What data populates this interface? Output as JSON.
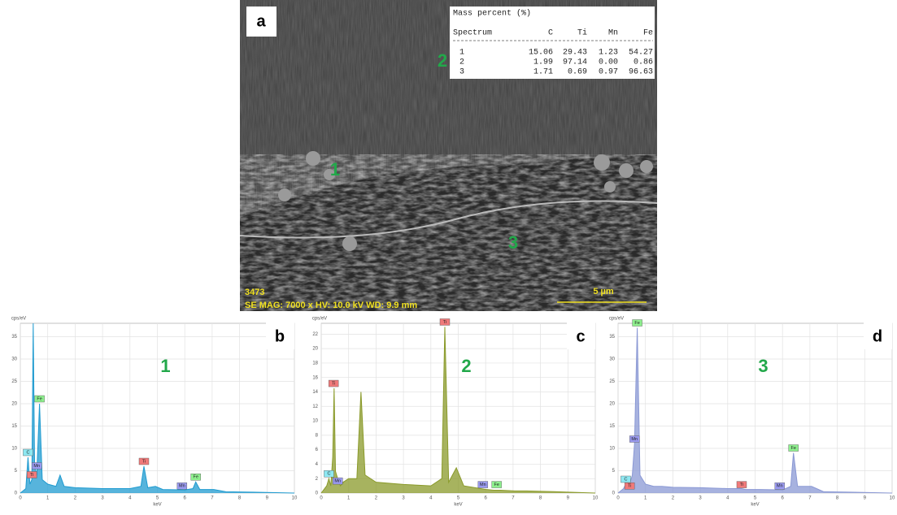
{
  "panel_a": {
    "label": "a",
    "table": {
      "title": "Mass percent (%)",
      "header": [
        "Spectrum",
        "C",
        "Ti",
        "Mn",
        "Fe"
      ],
      "rows": [
        [
          "1",
          "15.06",
          "29.43",
          "1.23",
          "54.27"
        ],
        [
          "2",
          "1.99",
          "97.14",
          "0.00",
          "0.86"
        ],
        [
          "3",
          "1.71",
          "0.69",
          "0.97",
          "96.63"
        ]
      ]
    },
    "markers": [
      "1",
      "2",
      "3"
    ],
    "info": [
      "3473",
      "SE MAG: 7000 x HV: 10.0 kV WD: 9.9 mm"
    ],
    "scale_bar": "5 µm"
  },
  "element_colors": {
    "C": "#8ee8f2",
    "Ti": "#f07a7a",
    "Mn": "#9a9af0",
    "Fe": "#8ef08e"
  },
  "chart_data": [
    {
      "type": "area",
      "panel_label": "b",
      "annotation": "1",
      "y_label": "cps/eV",
      "x_label": "keV",
      "color": "#1f9bd0",
      "grid": true,
      "x": [
        0,
        0.2,
        0.28,
        0.35,
        0.42,
        0.47,
        0.52,
        0.6,
        0.7,
        0.8,
        1.0,
        1.3,
        1.45,
        1.6,
        2.0,
        3.0,
        4.0,
        4.4,
        4.51,
        4.65,
        4.93,
        5.2,
        6.0,
        6.3,
        6.4,
        6.55,
        7.06,
        7.5,
        8.5,
        10
      ],
      "values": [
        0,
        1,
        8,
        2,
        3,
        38,
        6,
        4,
        20,
        3,
        2,
        1.5,
        4,
        1.5,
        1.2,
        1,
        1,
        1.5,
        6,
        1.2,
        1.5,
        0.8,
        0.7,
        1,
        2.5,
        0.8,
        0.8,
        0.3,
        0.2,
        0
      ],
      "xlim": [
        0,
        10
      ],
      "xticks": [
        0,
        1,
        2,
        3,
        4,
        5,
        6,
        7,
        8,
        9,
        10
      ],
      "ylim": [
        0,
        38
      ],
      "yticks": [
        0,
        5,
        10,
        15,
        20,
        25,
        30,
        35
      ],
      "peak_labels": [
        {
          "text": "C",
          "x": 0.28,
          "y": 8
        },
        {
          "text": "Ti",
          "x": 0.42,
          "y": 3
        },
        {
          "text": "Mn",
          "x": 0.6,
          "y": 5
        },
        {
          "text": "Fe",
          "x": 0.7,
          "y": 20
        },
        {
          "text": "Ti",
          "x": 4.51,
          "y": 6
        },
        {
          "text": "Mn",
          "x": 5.9,
          "y": 0.5
        },
        {
          "text": "Fe",
          "x": 6.4,
          "y": 2.5
        }
      ]
    },
    {
      "type": "area",
      "panel_label": "c",
      "annotation": "2",
      "y_label": "cps/eV",
      "x_label": "keV",
      "color": "#8a9a2a",
      "grid": true,
      "x": [
        0,
        0.2,
        0.28,
        0.35,
        0.42,
        0.47,
        0.52,
        0.6,
        0.7,
        0.8,
        1.0,
        1.3,
        1.45,
        1.6,
        2.0,
        3.0,
        4.0,
        4.4,
        4.51,
        4.65,
        4.93,
        5.2,
        6.0,
        6.3,
        6.4,
        6.55,
        7.06,
        7.5,
        8.5,
        10
      ],
      "values": [
        0,
        1,
        2,
        1,
        5,
        14.5,
        3,
        2,
        1,
        1.5,
        2,
        2,
        14,
        2.5,
        1.5,
        1.2,
        1,
        2,
        23,
        1.5,
        3.5,
        1,
        0.5,
        0.4,
        0.4,
        0.4,
        0.3,
        0.3,
        0.2,
        0
      ],
      "xlim": [
        0,
        10
      ],
      "xticks": [
        0,
        1,
        2,
        3,
        4,
        5,
        6,
        7,
        8,
        9,
        10
      ],
      "ylim": [
        0,
        23.5
      ],
      "yticks": [
        0,
        2,
        4,
        6,
        8,
        10,
        12,
        14,
        16,
        18,
        20,
        22
      ],
      "peak_labels": [
        {
          "text": "Ti",
          "x": 0.45,
          "y": 14.5
        },
        {
          "text": "C",
          "x": 0.28,
          "y": 2
        },
        {
          "text": "Mn",
          "x": 0.6,
          "y": 1
        },
        {
          "text": "Ti",
          "x": 4.51,
          "y": 23
        },
        {
          "text": "Mn",
          "x": 5.9,
          "y": 0.5
        },
        {
          "text": "Fe",
          "x": 6.4,
          "y": 0.5
        }
      ]
    },
    {
      "type": "area",
      "panel_label": "d",
      "annotation": "3",
      "y_label": "cps/eV",
      "x_label": "keV",
      "color": "#8a98d4",
      "grid": true,
      "x": [
        0,
        0.2,
        0.28,
        0.35,
        0.42,
        0.47,
        0.52,
        0.6,
        0.7,
        0.8,
        1.0,
        1.3,
        1.45,
        1.6,
        2.0,
        3.0,
        4.0,
        4.4,
        4.51,
        4.65,
        4.93,
        5.2,
        6.0,
        6.3,
        6.4,
        6.55,
        7.06,
        7.5,
        8.5,
        10
      ],
      "values": [
        0,
        1,
        2,
        1,
        2,
        3,
        4,
        11,
        37,
        4,
        2,
        1.5,
        1.5,
        1.5,
        1.3,
        1.2,
        1,
        1,
        1,
        0.8,
        0.8,
        0.8,
        0.7,
        1.5,
        9,
        1.5,
        1.5,
        0.3,
        0.2,
        0
      ],
      "xlim": [
        0,
        10
      ],
      "xticks": [
        0,
        1,
        2,
        3,
        4,
        5,
        6,
        7,
        8,
        9,
        10
      ],
      "ylim": [
        0,
        38
      ],
      "yticks": [
        0,
        5,
        10,
        15,
        20,
        25,
        30,
        35
      ],
      "peak_labels": [
        {
          "text": "C",
          "x": 0.28,
          "y": 2
        },
        {
          "text": "Ti",
          "x": 0.42,
          "y": 0.5
        },
        {
          "text": "Mn",
          "x": 0.6,
          "y": 11
        },
        {
          "text": "Fe",
          "x": 0.7,
          "y": 37
        },
        {
          "text": "Ti",
          "x": 4.51,
          "y": 0.8
        },
        {
          "text": "Mn",
          "x": 5.9,
          "y": 0.5
        },
        {
          "text": "Fe",
          "x": 6.4,
          "y": 9
        }
      ]
    }
  ]
}
